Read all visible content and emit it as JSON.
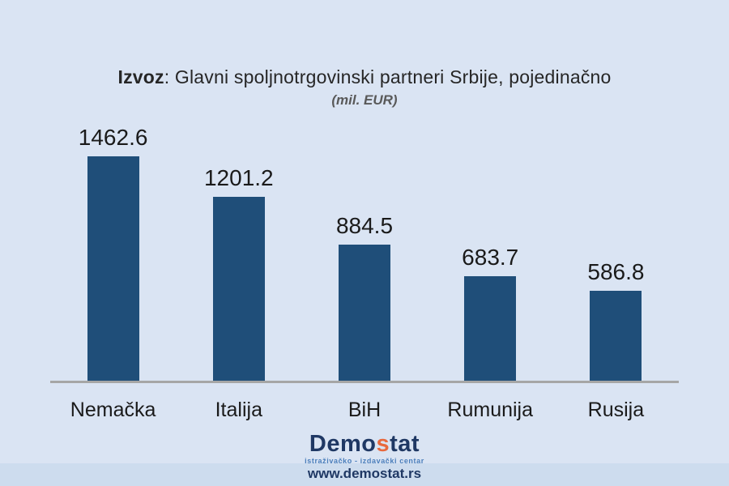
{
  "page": {
    "background_color": "#dae4f3"
  },
  "title": {
    "bold_part": "Izvoz",
    "rest_part": ": Glavni spoljnotrgovinski partneri Srbije, pojedinačno",
    "subtitle": "(mil. EUR)"
  },
  "chart_data": {
    "type": "bar",
    "title": "Izvoz: Glavni spoljnotrgovinski partneri Srbije, pojedinačno",
    "subtitle": "(mil. EUR)",
    "unit": "mil. EUR",
    "categories": [
      "Nemačka",
      "Italija",
      "BiH",
      "Rumunija",
      "Rusija"
    ],
    "values": [
      1462.6,
      1201.2,
      884.5,
      683.7,
      586.8
    ],
    "data_labels_shown": true,
    "legend": "none",
    "grid": "off",
    "ylim": [
      0,
      1600
    ],
    "bar_color": "#1f4e79",
    "axis_color": "#a6a6a6",
    "label_color": "#1a1a1a"
  },
  "footer": {
    "logo": {
      "part1": "Demo",
      "accent": "s",
      "part2": "tat",
      "tagline": "istraživačko - izdavački centar"
    },
    "website": "www.demostat.rs",
    "colors": {
      "navy": "#1f3864",
      "orange": "#e8693e",
      "tagline_blue": "#4a7ebb",
      "strip_background": "#cddcee"
    }
  }
}
